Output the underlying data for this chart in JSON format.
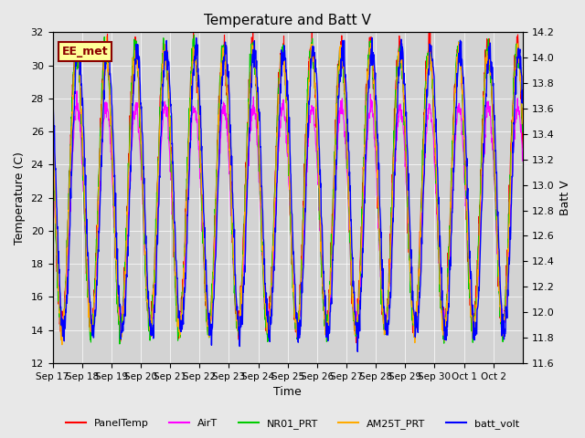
{
  "title": "Temperature and Batt V",
  "xlabel": "Time",
  "ylabel_left": "Temperature (C)",
  "ylabel_right": "Batt V",
  "annotation": "EE_met",
  "x_tick_labels": [
    "Sep 17",
    "Sep 18",
    "Sep 19",
    "Sep 20",
    "Sep 21",
    "Sep 22",
    "Sep 23",
    "Sep 24",
    "Sep 25",
    "Sep 26",
    "Sep 27",
    "Sep 28",
    "Sep 29",
    "Sep 30",
    "Oct 1",
    "Oct 2"
  ],
  "x_tick_positions": [
    0,
    1,
    2,
    3,
    4,
    5,
    6,
    7,
    8,
    9,
    10,
    11,
    12,
    13,
    14,
    15
  ],
  "ylim_left": [
    12,
    32
  ],
  "ylim_right": [
    11.6,
    14.2
  ],
  "yticks_left": [
    12,
    14,
    16,
    18,
    20,
    22,
    24,
    26,
    28,
    30,
    32
  ],
  "yticks_right": [
    11.6,
    11.8,
    12.0,
    12.2,
    12.4,
    12.6,
    12.8,
    13.0,
    13.2,
    13.4,
    13.6,
    13.8,
    14.0,
    14.2
  ],
  "legend_entries": [
    "PanelTemp",
    "AirT",
    "NR01_PRT",
    "AM25T_PRT",
    "batt_volt"
  ],
  "line_colors": [
    "#ff0000",
    "#ff00ff",
    "#00cc00",
    "#ffaa00",
    "#0000ff"
  ],
  "fig_facecolor": "#e8e8e8",
  "axes_facecolor": "#d3d3d3",
  "num_days": 16,
  "pts_per_day": 96
}
